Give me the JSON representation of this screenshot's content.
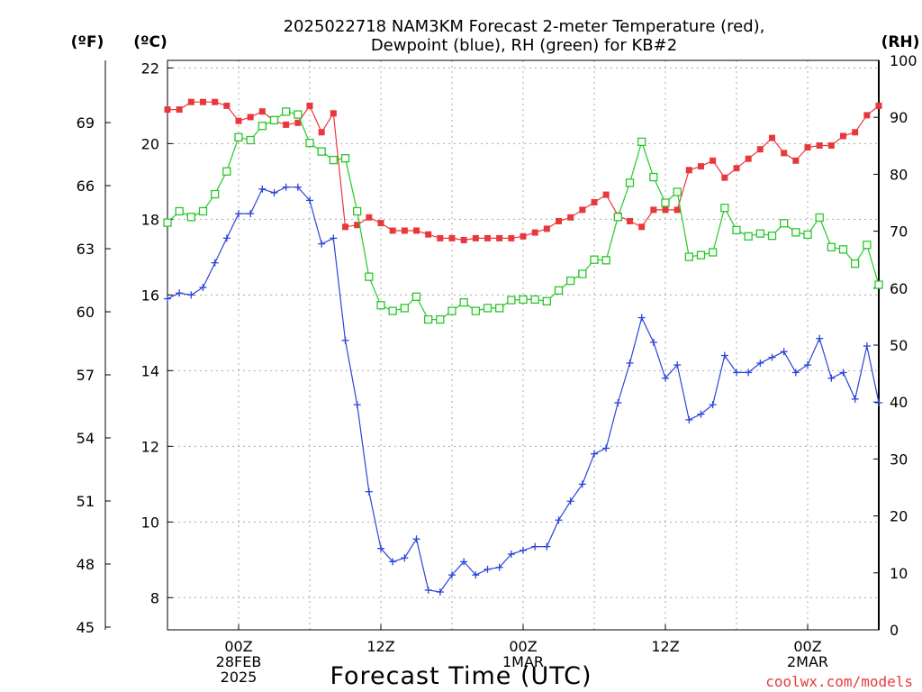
{
  "chart_data": {
    "type": "line",
    "title_lines": [
      "2025022718 NAM3KM Forecast 2-meter Temperature (red),",
      "Dewpoint (blue), RH (green) for KB#2"
    ],
    "xlabel": "Forecast Time (UTC)",
    "credit": "coolwx.com/models",
    "axes": {
      "fahrenheit": {
        "label": "(ºF)",
        "ticks": [
          "69",
          "66",
          "63",
          "60",
          "57",
          "54",
          "51",
          "48",
          "45"
        ],
        "tick_values": [
          69,
          66,
          63,
          60,
          57,
          54,
          51,
          48,
          45
        ]
      },
      "celsius": {
        "label": "(ºC)",
        "ticks": [
          "22",
          "20",
          "18",
          "16",
          "14",
          "12",
          "10",
          "8"
        ],
        "tick_values": [
          22,
          20,
          18,
          16,
          14,
          12,
          10,
          8
        ],
        "ylim": [
          7.15,
          22.2
        ]
      },
      "rh": {
        "label": "(RH)",
        "ticks": [
          "100",
          "90",
          "80",
          "70",
          "60",
          "50",
          "40",
          "30",
          "20",
          "10",
          "0"
        ],
        "tick_values": [
          100,
          90,
          80,
          70,
          60,
          50,
          40,
          30,
          20,
          10,
          0
        ],
        "ylim": [
          0,
          100
        ]
      }
    },
    "x_hours_range": [
      -6,
      54
    ],
    "x_ticks": [
      {
        "hour": 0,
        "lines": [
          "00Z",
          "28FEB",
          "2025"
        ]
      },
      {
        "hour": 12,
        "lines": [
          "12Z"
        ]
      },
      {
        "hour": 24,
        "lines": [
          "00Z",
          "1MAR"
        ]
      },
      {
        "hour": 36,
        "lines": [
          "12Z"
        ]
      },
      {
        "hour": 48,
        "lines": [
          "00Z",
          "2MAR"
        ]
      }
    ],
    "series": [
      {
        "name": "Temperature",
        "unit": "C",
        "color": "#e8383c",
        "marker": "filled-square",
        "values": [
          [
            -6,
            20.9
          ],
          [
            -5,
            20.9
          ],
          [
            -4,
            21.1
          ],
          [
            -3,
            21.1
          ],
          [
            -2,
            21.1
          ],
          [
            -1,
            21.0
          ],
          [
            0,
            20.6
          ],
          [
            1,
            20.7
          ],
          [
            2,
            20.85
          ],
          [
            3,
            20.6
          ],
          [
            4,
            20.5
          ],
          [
            5,
            20.55
          ],
          [
            6,
            21.0
          ],
          [
            7,
            20.3
          ],
          [
            8,
            20.8
          ],
          [
            9,
            17.8
          ],
          [
            10,
            17.85
          ],
          [
            11,
            18.05
          ],
          [
            12,
            17.9
          ],
          [
            13,
            17.7
          ],
          [
            14,
            17.7
          ],
          [
            15,
            17.7
          ],
          [
            16,
            17.6
          ],
          [
            17,
            17.5
          ],
          [
            18,
            17.5
          ],
          [
            19,
            17.45
          ],
          [
            20,
            17.5
          ],
          [
            21,
            17.5
          ],
          [
            22,
            17.5
          ],
          [
            23,
            17.5
          ],
          [
            24,
            17.55
          ],
          [
            25,
            17.65
          ],
          [
            26,
            17.75
          ],
          [
            27,
            17.95
          ],
          [
            28,
            18.05
          ],
          [
            29,
            18.25
          ],
          [
            30,
            18.45
          ],
          [
            31,
            18.65
          ],
          [
            32,
            18.1
          ],
          [
            33,
            17.95
          ],
          [
            34,
            17.8
          ],
          [
            35,
            18.25
          ],
          [
            36,
            18.25
          ],
          [
            37,
            18.25
          ],
          [
            38,
            19.3
          ],
          [
            39,
            19.4
          ],
          [
            40,
            19.55
          ],
          [
            41,
            19.1
          ],
          [
            42,
            19.35
          ],
          [
            43,
            19.6
          ],
          [
            44,
            19.85
          ],
          [
            45,
            20.15
          ],
          [
            46,
            19.75
          ],
          [
            47,
            19.55
          ],
          [
            48,
            19.9
          ],
          [
            49,
            19.95
          ],
          [
            50,
            19.95
          ],
          [
            51,
            20.2
          ],
          [
            52,
            20.3
          ],
          [
            53,
            20.75
          ],
          [
            54,
            21.0
          ]
        ]
      },
      {
        "name": "Dewpoint",
        "unit": "C",
        "color": "#2b44d8",
        "marker": "plus",
        "values": [
          [
            -6,
            15.9
          ],
          [
            -5,
            16.05
          ],
          [
            -4,
            16.0
          ],
          [
            -3,
            16.2
          ],
          [
            -2,
            16.85
          ],
          [
            -1,
            17.5
          ],
          [
            0,
            18.15
          ],
          [
            1,
            18.15
          ],
          [
            2,
            18.8
          ],
          [
            3,
            18.7
          ],
          [
            4,
            18.85
          ],
          [
            5,
            18.85
          ],
          [
            6,
            18.5
          ],
          [
            7,
            17.35
          ],
          [
            8,
            17.5
          ],
          [
            9,
            14.8
          ],
          [
            10,
            13.1
          ],
          [
            11,
            10.8
          ],
          [
            12,
            9.3
          ],
          [
            13,
            8.95
          ],
          [
            14,
            9.05
          ],
          [
            15,
            9.55
          ],
          [
            16,
            8.2
          ],
          [
            17,
            8.15
          ],
          [
            18,
            8.6
          ],
          [
            19,
            8.95
          ],
          [
            20,
            8.6
          ],
          [
            21,
            8.75
          ],
          [
            22,
            8.8
          ],
          [
            23,
            9.15
          ],
          [
            24,
            9.25
          ],
          [
            25,
            9.35
          ],
          [
            26,
            9.35
          ],
          [
            27,
            10.05
          ],
          [
            28,
            10.55
          ],
          [
            29,
            11.0
          ],
          [
            30,
            11.8
          ],
          [
            31,
            11.95
          ],
          [
            32,
            13.15
          ],
          [
            33,
            14.2
          ],
          [
            34,
            15.4
          ],
          [
            35,
            14.75
          ],
          [
            36,
            13.8
          ],
          [
            37,
            14.15
          ],
          [
            38,
            12.7
          ],
          [
            39,
            12.85
          ],
          [
            40,
            13.1
          ],
          [
            41,
            14.4
          ],
          [
            42,
            13.95
          ],
          [
            43,
            13.95
          ],
          [
            44,
            14.2
          ],
          [
            45,
            14.35
          ],
          [
            46,
            14.5
          ],
          [
            47,
            13.95
          ],
          [
            48,
            14.15
          ],
          [
            49,
            14.85
          ],
          [
            50,
            13.8
          ],
          [
            51,
            13.95
          ],
          [
            52,
            13.25
          ],
          [
            53,
            14.65
          ],
          [
            54,
            13.15
          ]
        ]
      },
      {
        "name": "RH",
        "unit": "%",
        "color": "#26c828",
        "marker": "open-square",
        "values": [
          [
            -6,
            71.5
          ],
          [
            -5,
            73.5
          ],
          [
            -4,
            72.5
          ],
          [
            -3,
            73.5
          ],
          [
            -2,
            76.5
          ],
          [
            -1,
            80.5
          ],
          [
            0,
            86.5
          ],
          [
            1,
            86.0
          ],
          [
            2,
            88.5
          ],
          [
            3,
            89.5
          ],
          [
            4,
            91.0
          ],
          [
            5,
            90.5
          ],
          [
            6,
            85.5
          ],
          [
            7,
            84.0
          ],
          [
            8,
            82.5
          ],
          [
            9,
            82.8
          ],
          [
            10,
            73.5
          ],
          [
            11,
            62.0
          ],
          [
            12,
            57.0
          ],
          [
            13,
            56.0
          ],
          [
            14,
            56.5
          ],
          [
            15,
            58.5
          ],
          [
            16,
            54.5
          ],
          [
            17,
            54.5
          ],
          [
            18,
            56.0
          ],
          [
            19,
            57.5
          ],
          [
            20,
            56.0
          ],
          [
            21,
            56.5
          ],
          [
            22,
            56.5
          ],
          [
            23,
            57.9
          ],
          [
            24,
            58.0
          ],
          [
            25,
            58.0
          ],
          [
            26,
            57.7
          ],
          [
            27,
            59.6
          ],
          [
            28,
            61.3
          ],
          [
            29,
            62.5
          ],
          [
            30,
            65.0
          ],
          [
            31,
            64.9
          ],
          [
            32,
            72.5
          ],
          [
            33,
            78.5
          ],
          [
            34,
            85.7
          ],
          [
            35,
            79.5
          ],
          [
            36,
            75.0
          ],
          [
            37,
            76.9
          ],
          [
            38,
            65.5
          ],
          [
            39,
            65.8
          ],
          [
            40,
            66.3
          ],
          [
            41,
            74.1
          ],
          [
            42,
            70.2
          ],
          [
            43,
            69.1
          ],
          [
            44,
            69.6
          ],
          [
            45,
            69.2
          ],
          [
            46,
            71.4
          ],
          [
            47,
            69.8
          ],
          [
            48,
            69.4
          ],
          [
            49,
            72.4
          ],
          [
            50,
            67.2
          ],
          [
            51,
            66.8
          ],
          [
            52,
            64.3
          ],
          [
            53,
            67.6
          ],
          [
            54,
            60.6
          ]
        ]
      }
    ]
  }
}
